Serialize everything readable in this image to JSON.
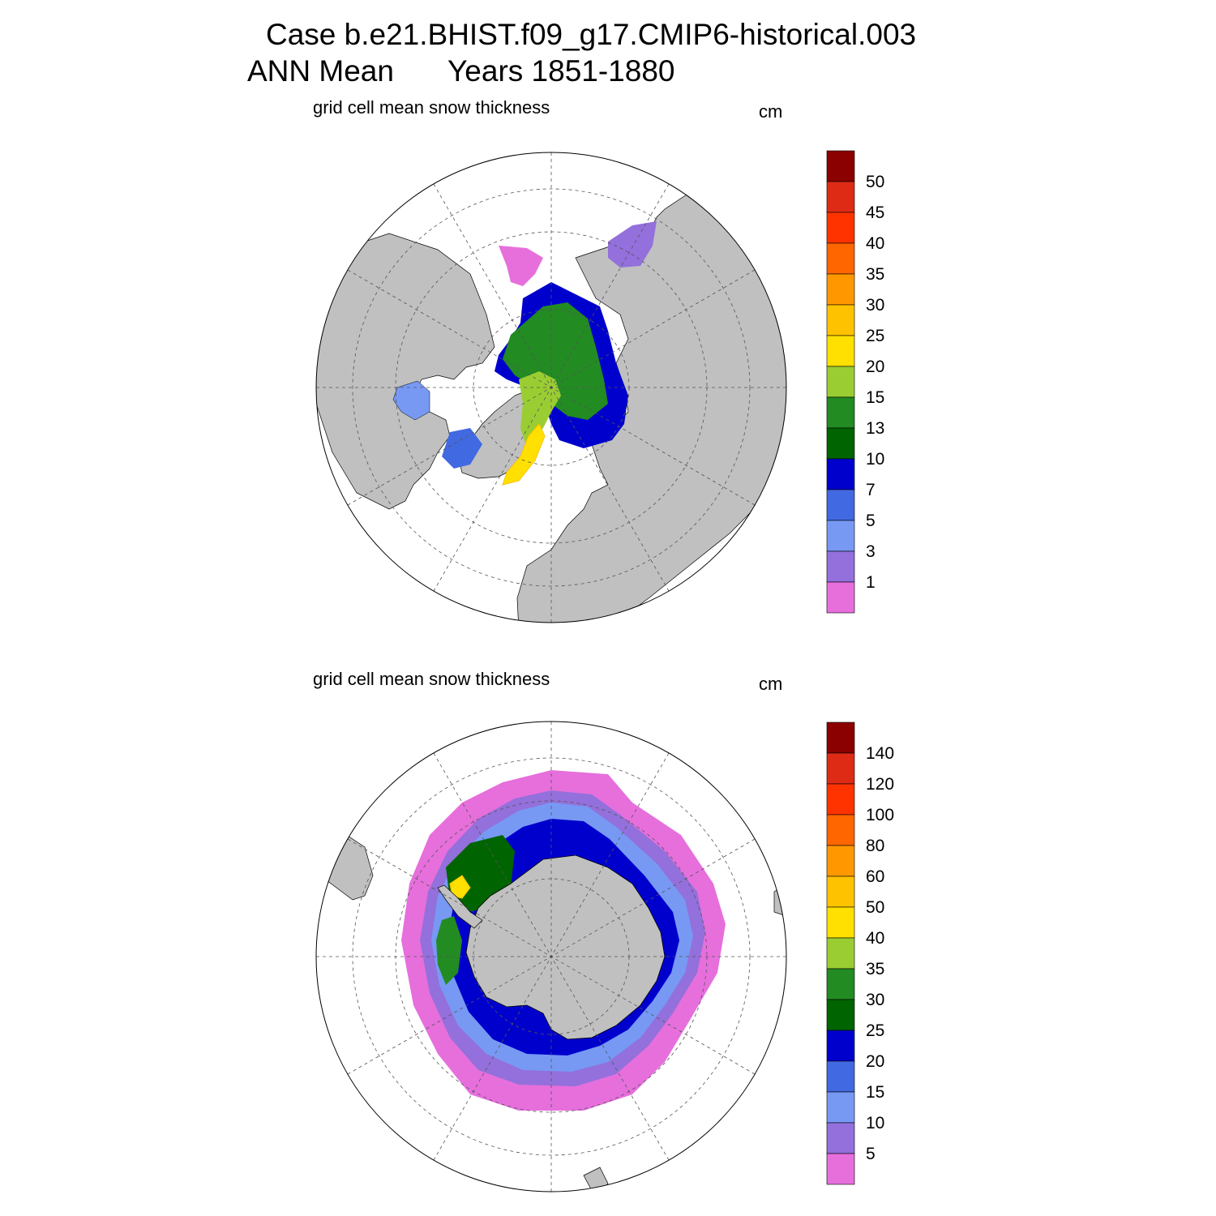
{
  "title": {
    "line1": "Case b.e21.BHIST.f09_g17.CMIP6-historical.003",
    "line2_left": "ANN Mean",
    "line2_right": "Years 1851-1880"
  },
  "panels": [
    {
      "id": "north",
      "label": "grid cell mean snow thickness",
      "units": "cm",
      "colorbar": {
        "colors": [
          "#e66fdc",
          "#9370db",
          "#7799f4",
          "#4169e1",
          "#0000cd",
          "#006400",
          "#228b22",
          "#9acd32",
          "#ffe000",
          "#ffc200",
          "#ff9800",
          "#ff6600",
          "#ff3300",
          "#dd2b16",
          "#8b0000"
        ],
        "tick_labels": [
          "1",
          "3",
          "5",
          "7",
          "10",
          "13",
          "15",
          "20",
          "25",
          "30",
          "35",
          "40",
          "45",
          "50"
        ]
      }
    },
    {
      "id": "south",
      "label": "grid cell mean snow thickness",
      "units": "cm",
      "colorbar": {
        "colors": [
          "#e66fdc",
          "#9370db",
          "#7799f4",
          "#4169e1",
          "#0000cd",
          "#006400",
          "#228b22",
          "#9acd32",
          "#ffe000",
          "#ffc200",
          "#ff9800",
          "#ff6600",
          "#ff3300",
          "#dd2b16",
          "#8b0000"
        ],
        "tick_labels": [
          "5",
          "10",
          "15",
          "20",
          "25",
          "30",
          "35",
          "40",
          "50",
          "60",
          "80",
          "100",
          "120",
          "140"
        ]
      }
    }
  ],
  "style": {
    "land_color": "#c0c0c0",
    "ocean_color": "#ffffff",
    "gridline_color": "#555555"
  }
}
